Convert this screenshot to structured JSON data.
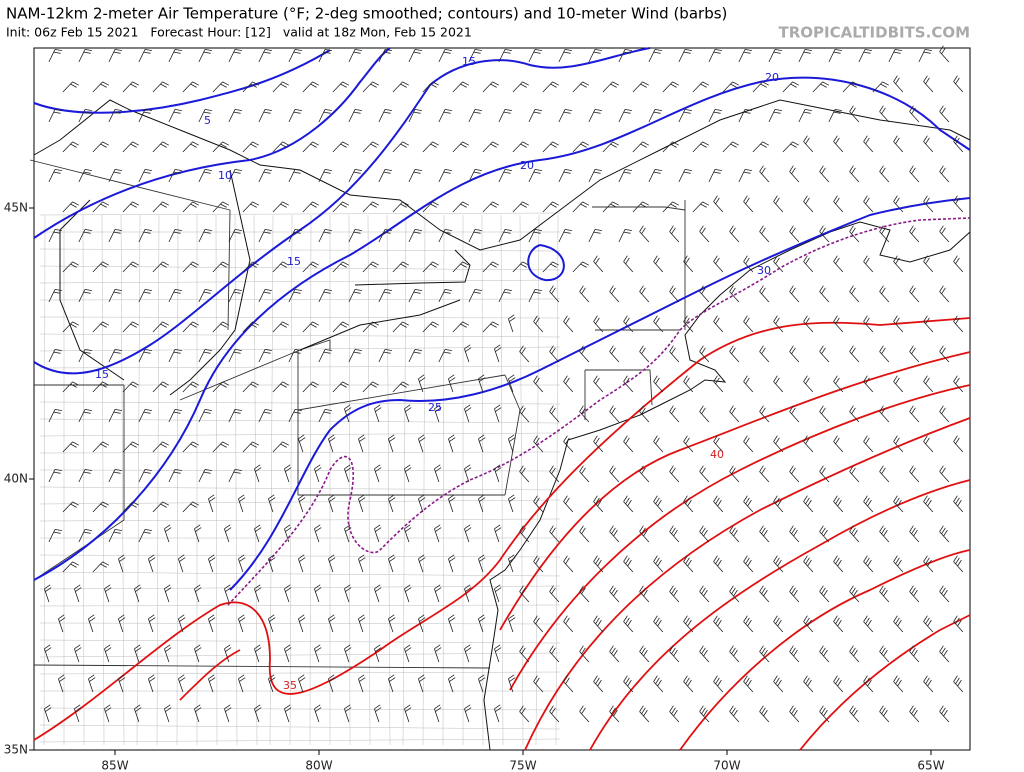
{
  "header": {
    "title": "NAM-12km 2-meter Air Temperature (°F; 2-deg smoothed; contours) and 10-meter Wind (barbs)",
    "subtitle": "Init: 06z Feb 15 2021   Forecast Hour: [12]   valid at 18z Mon, Feb 15 2021",
    "watermark": "TROPICALTIDBITS.COM"
  },
  "map": {
    "x_labels": [
      "85W",
      "80W",
      "75W",
      "70W",
      "65W"
    ],
    "y_labels": [
      "45N",
      "40N",
      "35N"
    ],
    "contour_labels": [
      "5",
      "10",
      "15",
      "15",
      "15",
      "20",
      "20",
      "25",
      "30",
      "35",
      "40"
    ]
  }
}
